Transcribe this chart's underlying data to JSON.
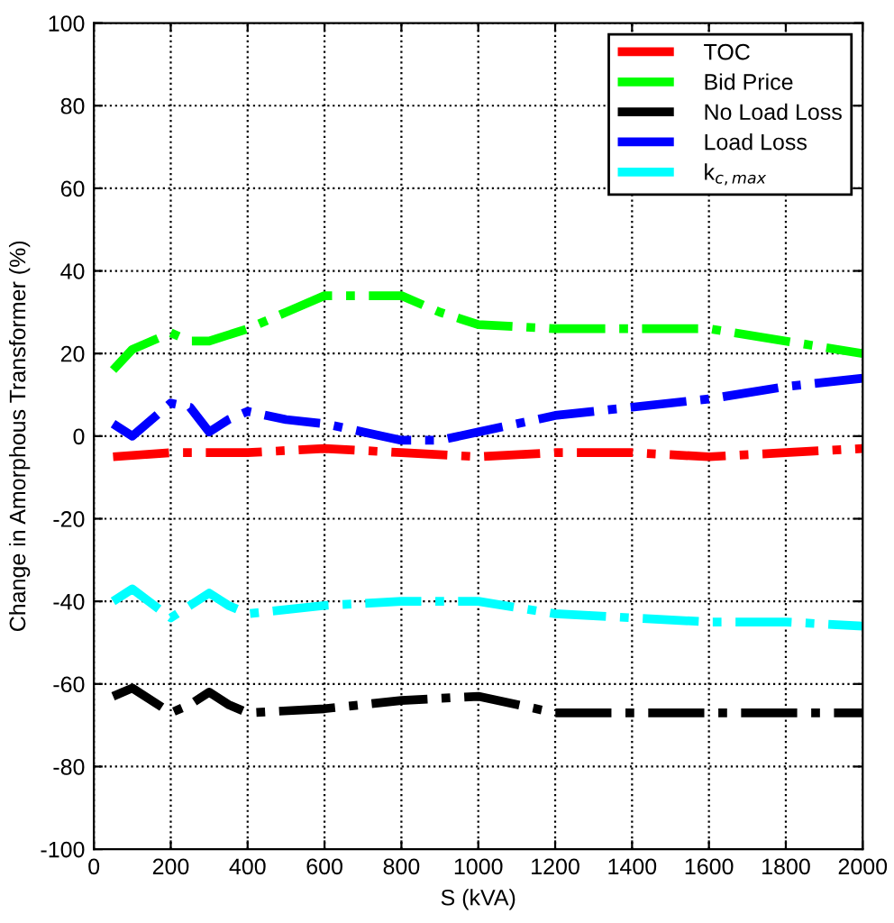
{
  "chart_data": {
    "type": "line",
    "xlabel": "S (kVA)",
    "ylabel": "Change in Amorphous Transformer (%)",
    "xlim": [
      0,
      2000
    ],
    "ylim": [
      -100,
      100
    ],
    "xticks": [
      0,
      200,
      400,
      600,
      800,
      1000,
      1200,
      1400,
      1600,
      1800,
      2000
    ],
    "yticks": [
      -100,
      -80,
      -60,
      -40,
      -20,
      0,
      20,
      40,
      60,
      80,
      100
    ],
    "grid": true,
    "legend": "top right",
    "line_style": "dashdot",
    "marker": "none",
    "series": [
      {
        "name": "TOC",
        "color": "#ff0000",
        "x": [
          50,
          200,
          400,
          600,
          800,
          1000,
          1200,
          1400,
          1600,
          1800,
          2000
        ],
        "values": [
          -5,
          -4,
          -4,
          -3,
          -4,
          -5,
          -4,
          -4,
          -5,
          -4,
          -3
        ]
      },
      {
        "name": "Bid Price",
        "color": "#00ff00",
        "x": [
          50,
          100,
          200,
          250,
          300,
          400,
          500,
          600,
          700,
          800,
          900,
          1000,
          1200,
          1400,
          1600,
          1800,
          2000
        ],
        "values": [
          16,
          21,
          25,
          23,
          23,
          26,
          30,
          34,
          34,
          34,
          30,
          27,
          26,
          26,
          26,
          23,
          20
        ]
      },
      {
        "name": "No Load Loss",
        "color": "#000000",
        "x": [
          50,
          100,
          200,
          250,
          300,
          350,
          400,
          600,
          800,
          1000,
          1200,
          1400,
          1600,
          1800,
          2000
        ],
        "values": [
          -63,
          -61,
          -67,
          -65,
          -62,
          -65,
          -67,
          -66,
          -64,
          -63,
          -67,
          -67,
          -67,
          -67,
          -67
        ]
      },
      {
        "name": "Load Loss",
        "color": "#0000ff",
        "x": [
          50,
          100,
          200,
          250,
          300,
          350,
          400,
          500,
          600,
          700,
          800,
          900,
          1000,
          1200,
          1400,
          1600,
          1800,
          2000
        ],
        "values": [
          3,
          0,
          8,
          7,
          1,
          4,
          6,
          4,
          3,
          1,
          -1,
          -1,
          1,
          5,
          7,
          9,
          12,
          14
        ]
      },
      {
        "name": "k$_{c,max}$",
        "color": "#00ffff",
        "x": [
          50,
          100,
          200,
          250,
          300,
          350,
          400,
          600,
          800,
          1000,
          1200,
          1400,
          1600,
          1800,
          2000
        ],
        "values": [
          -40,
          -37,
          -44,
          -41,
          -38,
          -41,
          -43,
          -41,
          -40,
          -40,
          -43,
          -44,
          -45,
          -45,
          -46
        ]
      }
    ]
  }
}
